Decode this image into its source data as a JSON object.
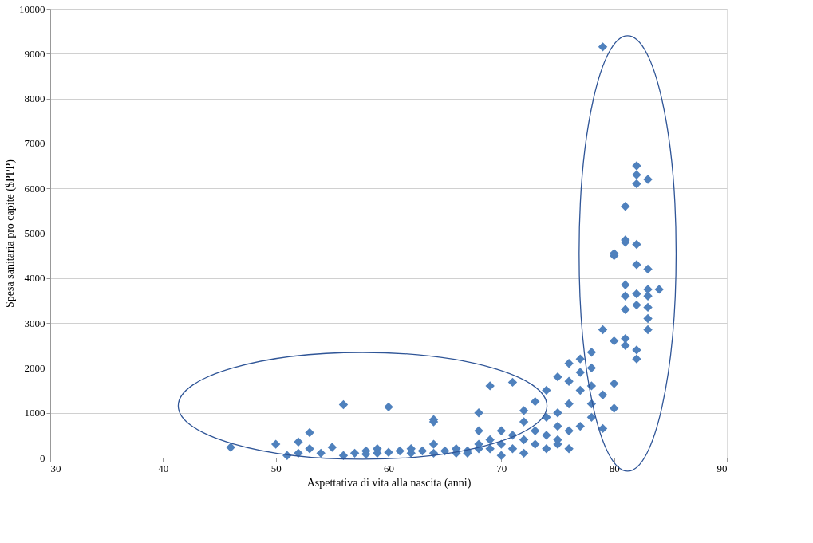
{
  "chart_data": {
    "type": "scatter",
    "xlabel": "Aspettativa di vita alla nascita (anni)",
    "ylabel": "Spesa sanitaria pro capite ($PPP)",
    "x": [
      46,
      50,
      51,
      52,
      52,
      53,
      53,
      54,
      55,
      56,
      56,
      57,
      58,
      58,
      59,
      59,
      60,
      60,
      61,
      62,
      62,
      63,
      64,
      64,
      64,
      64,
      65,
      66,
      66,
      67,
      67,
      68,
      68,
      68,
      68,
      69,
      69,
      69,
      70,
      70,
      70,
      71,
      71,
      71,
      72,
      72,
      72,
      72,
      73,
      73,
      73,
      74,
      74,
      74,
      74,
      75,
      75,
      75,
      75,
      75,
      76,
      76,
      76,
      76,
      76,
      77,
      77,
      77,
      77,
      78,
      78,
      78,
      78,
      78,
      79,
      79,
      79,
      79,
      80,
      80,
      80,
      80,
      80,
      81,
      81,
      81,
      81,
      81,
      81,
      81,
      81,
      82,
      82,
      82,
      82,
      82,
      82,
      82,
      82,
      82,
      83,
      83,
      83,
      83,
      83,
      83,
      83,
      84
    ],
    "series": [
      {
        "color": "#4f81bd",
        "values": [
          230,
          300,
          50,
          100,
          350,
          200,
          560,
          100,
          230,
          1180,
          50,
          100,
          150,
          80,
          200,
          100,
          1130,
          120,
          150,
          200,
          100,
          150,
          100,
          300,
          800,
          850,
          150,
          100,
          200,
          150,
          100,
          200,
          300,
          600,
          1000,
          1600,
          200,
          400,
          50,
          300,
          600,
          1680,
          200,
          500,
          100,
          800,
          1050,
          400,
          300,
          600,
          1250,
          200,
          500,
          900,
          1500,
          300,
          700,
          1000,
          1800,
          400,
          200,
          600,
          1200,
          1700,
          2100,
          700,
          1500,
          1900,
          2200,
          900,
          1200,
          1600,
          2000,
          2350,
          650,
          1400,
          2850,
          9150,
          1100,
          1650,
          2600,
          4500,
          4550,
          2500,
          2650,
          3300,
          3600,
          3850,
          4800,
          4850,
          5600,
          2200,
          2400,
          3400,
          3650,
          4300,
          4750,
          6100,
          6300,
          6500,
          2850,
          3100,
          3350,
          3600,
          3750,
          4200,
          6200,
          3750
        ]
      }
    ],
    "marker": "diamond",
    "xlim": [
      30,
      90
    ],
    "xticks": [
      30,
      40,
      50,
      60,
      70,
      80,
      90
    ],
    "ylim": [
      0,
      10000
    ],
    "yticks": [
      0,
      1000,
      2000,
      3000,
      4000,
      5000,
      6000,
      7000,
      8000,
      9000,
      10000
    ],
    "grid": "y",
    "legend": false
  }
}
